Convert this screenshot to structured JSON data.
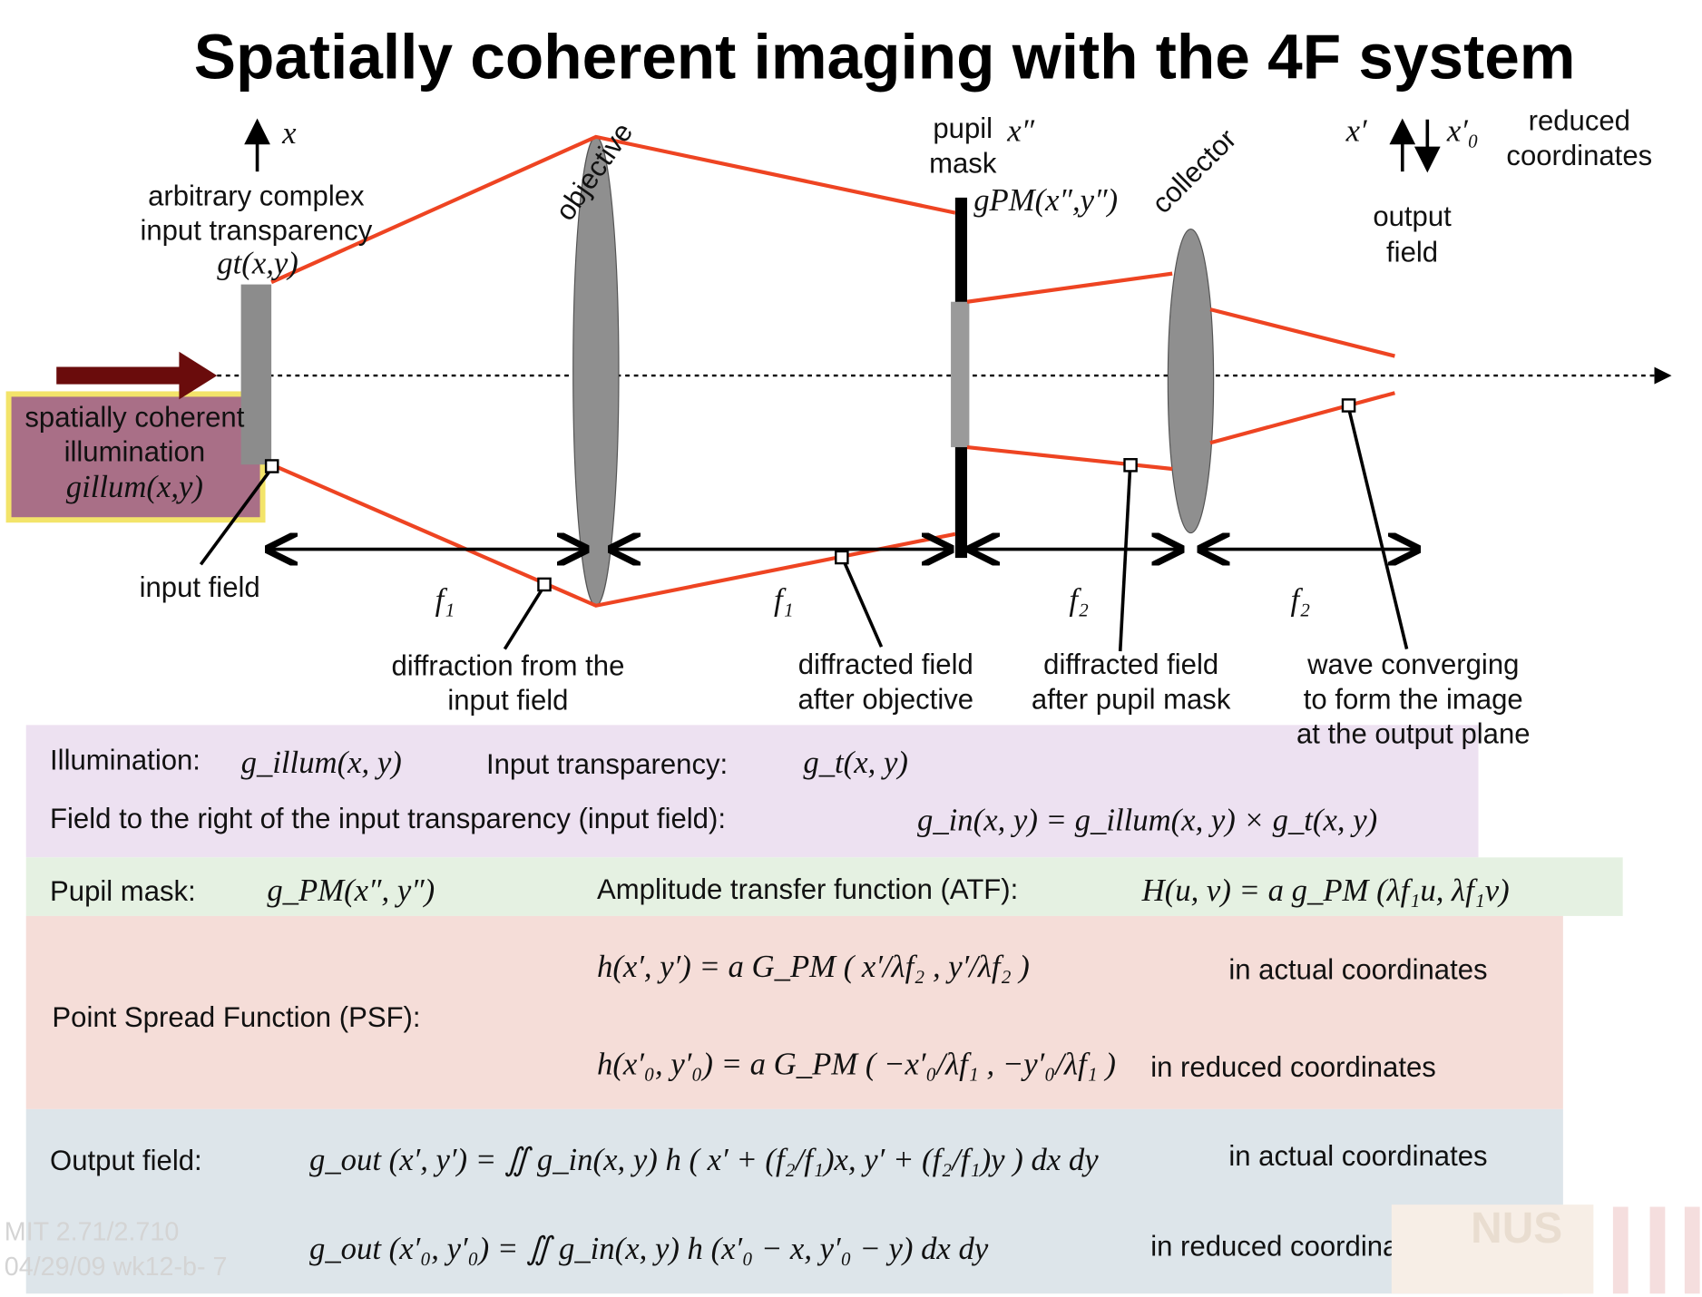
{
  "title": "Spatially coherent imaging with the 4F system",
  "diagram": {
    "input_axis": "x",
    "transparency_label": [
      "arbitrary complex",
      "input transparency"
    ],
    "transparency_function": "gt(x,y)",
    "objective": "objective",
    "pupil_label": [
      "pupil",
      "mask"
    ],
    "pupil_axis": "x″",
    "pupil_function": "gPM(x″,y″)",
    "collector": "collector",
    "output_axis": "x′",
    "reduced_axis": "x′₀",
    "reduced_label": [
      "reduced",
      "coordinates"
    ],
    "output_label": [
      "output",
      "field"
    ],
    "illumination_label": [
      "spatially coherent",
      "illumination"
    ],
    "illumination_function": "gillum(x,y)",
    "input_field": "input field",
    "distances": [
      "f₁",
      "f₁",
      "f₂",
      "f₂"
    ],
    "callouts": [
      [
        "diffraction from the",
        "input field"
      ],
      [
        "diffracted field",
        "after objective"
      ],
      [
        "diffracted field",
        "after pupil mask"
      ],
      [
        "wave converging",
        "to form the image",
        "at the output plane"
      ]
    ]
  },
  "panels": {
    "illumination": {
      "label": "Illumination:",
      "formula": "g_illum(x, y)"
    },
    "transparency": {
      "label": "Input transparency:",
      "formula": "g_t(x, y)"
    },
    "input_field": {
      "label": "Field to the right of the input transparency (input field):",
      "formula": "g_in(x, y) = g_illum(x, y) × g_t(x, y)"
    },
    "pupil": {
      "label": "Pupil mask:",
      "formula": "g_PM(x″, y″)"
    },
    "atf": {
      "label": "Amplitude transfer function (ATF):",
      "formula": "H(u, v) = a g_PM (λf₁u, λf₁v)"
    },
    "psf": {
      "label": "Point Spread Function (PSF):",
      "rows": [
        {
          "formula": "h(x′, y′) = a G_PM ( x′/λf₂ , y′/λf₂ )",
          "note": "in actual coordinates"
        },
        {
          "formula": "h(x′₀, y′₀) = a G_PM ( −x′₀/λf₁ , −y′₀/λf₁ )",
          "note": "in reduced coordinates"
        }
      ]
    },
    "output": {
      "label": "Output field:",
      "rows": [
        {
          "formula": "g_out (x′, y′) = ∬ g_in(x, y) h ( x′ + (f₂/f₁)x, y′ + (f₂/f₁)y ) dx dy",
          "note": "in actual coordinates"
        },
        {
          "formula": "g_out (x′₀, y′₀) = ∬ g_in(x, y) h (x′₀ − x, y′₀ − y) dx dy",
          "note": "in reduced coordinates"
        }
      ]
    }
  },
  "footer": {
    "course": "MIT 2.71/2.710",
    "date": "04/29/09 wk12-b-  7",
    "logo": "NUS"
  }
}
